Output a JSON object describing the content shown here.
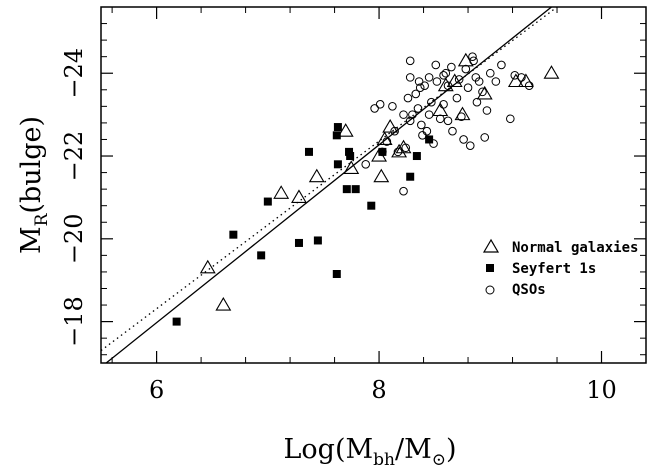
{
  "chart_data": {
    "type": "scatter",
    "xlim": [
      5.5,
      10.4
    ],
    "ylim": [
      -17.0,
      -25.6
    ],
    "y_inverted": true,
    "xticks": [
      6,
      8,
      10
    ],
    "yticks": [
      -18,
      -20,
      -22,
      -24
    ],
    "xtick_labels": [
      "6",
      "8",
      "10"
    ],
    "ytick_labels": [
      "−18",
      "−20",
      "−22",
      "−24"
    ],
    "xlabel": {
      "prefix": "Log(M",
      "sub1": "bh",
      "middle": "/M",
      "sub2": "⊙",
      "suffix": ")"
    },
    "ylabel": {
      "prefix": "M",
      "sub": "R",
      "suffix": "(bulge)"
    },
    "legend_position": "right",
    "series": [
      {
        "name": "Normal galaxies",
        "marker": "open-triangle",
        "points": [
          [
            6.46,
            -19.3
          ],
          [
            6.6,
            -18.4
          ],
          [
            7.12,
            -21.1
          ],
          [
            7.28,
            -21.0
          ],
          [
            7.7,
            -22.6
          ],
          [
            7.75,
            -21.7
          ],
          [
            7.44,
            -21.5
          ],
          [
            8.02,
            -21.5
          ],
          [
            8.05,
            -22.4
          ],
          [
            8.1,
            -22.7
          ],
          [
            8.18,
            -22.1
          ],
          [
            8.22,
            -22.2
          ],
          [
            8.6,
            -23.7
          ],
          [
            8.68,
            -23.8
          ],
          [
            8.78,
            -24.3
          ],
          [
            8.75,
            -23.0
          ],
          [
            8.95,
            -23.5
          ],
          [
            9.23,
            -23.8
          ],
          [
            9.32,
            -23.8
          ],
          [
            9.55,
            -24.0
          ],
          [
            8.55,
            -23.1
          ],
          [
            8.0,
            -22.0
          ]
        ]
      },
      {
        "name": "Seyfert 1s",
        "marker": "filled-square",
        "points": [
          [
            6.18,
            -18.0
          ],
          [
            6.69,
            -20.1
          ],
          [
            6.94,
            -19.6
          ],
          [
            7.0,
            -20.9
          ],
          [
            7.28,
            -19.9
          ],
          [
            7.37,
            -22.1
          ],
          [
            7.45,
            -19.96
          ],
          [
            7.62,
            -19.15
          ],
          [
            7.63,
            -21.8
          ],
          [
            7.63,
            -22.7
          ],
          [
            7.71,
            -21.2
          ],
          [
            7.74,
            -22.0
          ],
          [
            7.79,
            -21.2
          ],
          [
            7.73,
            -22.1
          ],
          [
            7.93,
            -20.8
          ],
          [
            8.03,
            -22.1
          ],
          [
            8.28,
            -21.5
          ],
          [
            8.34,
            -22.0
          ],
          [
            8.45,
            -22.4
          ],
          [
            7.62,
            -22.5
          ]
        ]
      },
      {
        "name": "QSOs",
        "marker": "open-circle",
        "points": [
          [
            7.88,
            -21.8
          ],
          [
            7.96,
            -23.15
          ],
          [
            8.01,
            -23.25
          ],
          [
            8.03,
            -22.1
          ],
          [
            8.07,
            -22.35
          ],
          [
            8.12,
            -23.2
          ],
          [
            8.14,
            -22.6
          ],
          [
            8.17,
            -22.1
          ],
          [
            8.22,
            -21.15
          ],
          [
            8.22,
            -23.0
          ],
          [
            8.24,
            -22.2
          ],
          [
            8.26,
            -23.4
          ],
          [
            8.28,
            -23.9
          ],
          [
            8.28,
            -22.85
          ],
          [
            8.28,
            -24.3
          ],
          [
            8.3,
            -23.0
          ],
          [
            8.33,
            -23.5
          ],
          [
            8.35,
            -23.15
          ],
          [
            8.36,
            -23.8
          ],
          [
            8.37,
            -23.65
          ],
          [
            8.38,
            -22.75
          ],
          [
            8.39,
            -22.5
          ],
          [
            8.41,
            -23.7
          ],
          [
            8.43,
            -22.6
          ],
          [
            8.45,
            -23.0
          ],
          [
            8.47,
            -23.3
          ],
          [
            8.49,
            -22.3
          ],
          [
            8.51,
            -24.2
          ],
          [
            8.52,
            -23.8
          ],
          [
            8.55,
            -22.9
          ],
          [
            8.58,
            -23.25
          ],
          [
            8.6,
            -24.0
          ],
          [
            8.62,
            -23.7
          ],
          [
            8.62,
            -22.85
          ],
          [
            8.65,
            -24.15
          ],
          [
            8.7,
            -23.4
          ],
          [
            8.72,
            -23.85
          ],
          [
            8.74,
            -22.95
          ],
          [
            8.76,
            -22.4
          ],
          [
            8.78,
            -24.1
          ],
          [
            8.8,
            -23.65
          ],
          [
            8.82,
            -22.25
          ],
          [
            8.84,
            -24.4
          ],
          [
            8.85,
            -24.3
          ],
          [
            8.87,
            -23.9
          ],
          [
            8.88,
            -23.3
          ],
          [
            8.9,
            -23.8
          ],
          [
            8.93,
            -23.55
          ],
          [
            8.95,
            -22.45
          ],
          [
            8.97,
            -23.1
          ],
          [
            9.0,
            -24.0
          ],
          [
            9.05,
            -23.8
          ],
          [
            9.1,
            -24.2
          ],
          [
            9.18,
            -22.9
          ],
          [
            9.22,
            -23.95
          ],
          [
            9.28,
            -23.9
          ],
          [
            9.35,
            -23.7
          ],
          [
            8.58,
            -23.95
          ],
          [
            8.66,
            -22.6
          ],
          [
            8.45,
            -23.9
          ]
        ]
      }
    ],
    "fit_lines": [
      {
        "style": "solid",
        "points": [
          [
            5.5,
            -16.9
          ],
          [
            9.55,
            -25.6
          ]
        ]
      },
      {
        "style": "dotted",
        "points": [
          [
            5.5,
            -17.3
          ],
          [
            9.6,
            -25.6
          ]
        ]
      }
    ]
  }
}
